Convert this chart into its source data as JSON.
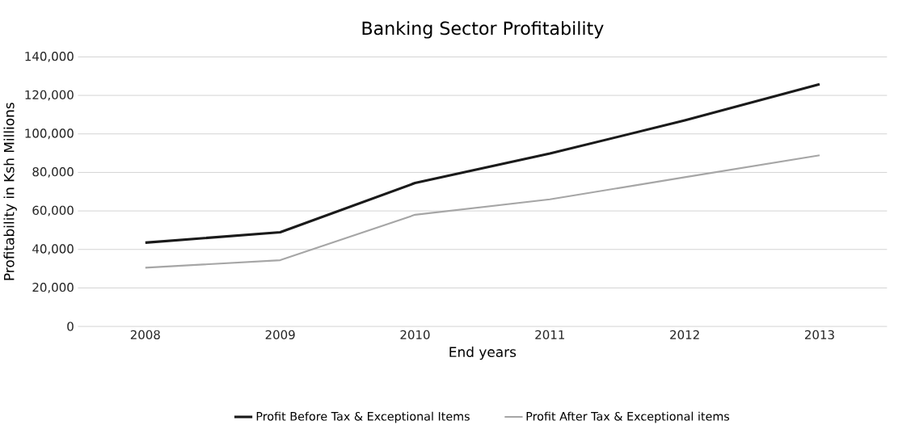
{
  "chart_data": {
    "type": "line",
    "title": "Banking Sector Profitability",
    "xlabel": "End years",
    "ylabel": "Profitability in Ksh Millions",
    "categories": [
      "2008",
      "2009",
      "2010",
      "2011",
      "2012",
      "2013"
    ],
    "series": [
      {
        "name": "Profit Before Tax & Exceptional Items",
        "color": "#1a1a1a",
        "values": [
          43500,
          48900,
          74500,
          89800,
          107000,
          125800
        ]
      },
      {
        "name": "Profit After Tax & Exceptional items",
        "color": "#a6a6a6",
        "values": [
          30500,
          34400,
          58000,
          66000,
          77500,
          88900
        ]
      }
    ],
    "ylim": [
      0,
      140000
    ],
    "yticks": [
      {
        "value": 0,
        "label": "0"
      },
      {
        "value": 20000,
        "label": "20,000"
      },
      {
        "value": 40000,
        "label": "40,000"
      },
      {
        "value": 60000,
        "label": "60,000"
      },
      {
        "value": 80000,
        "label": "80,000"
      },
      {
        "value": 100000,
        "label": "100,000"
      },
      {
        "value": 120000,
        "label": "120,000"
      },
      {
        "value": 140000,
        "label": "140,000"
      }
    ],
    "grid": "y",
    "legend": "bottom",
    "marker": "none",
    "line_style": "solid"
  }
}
